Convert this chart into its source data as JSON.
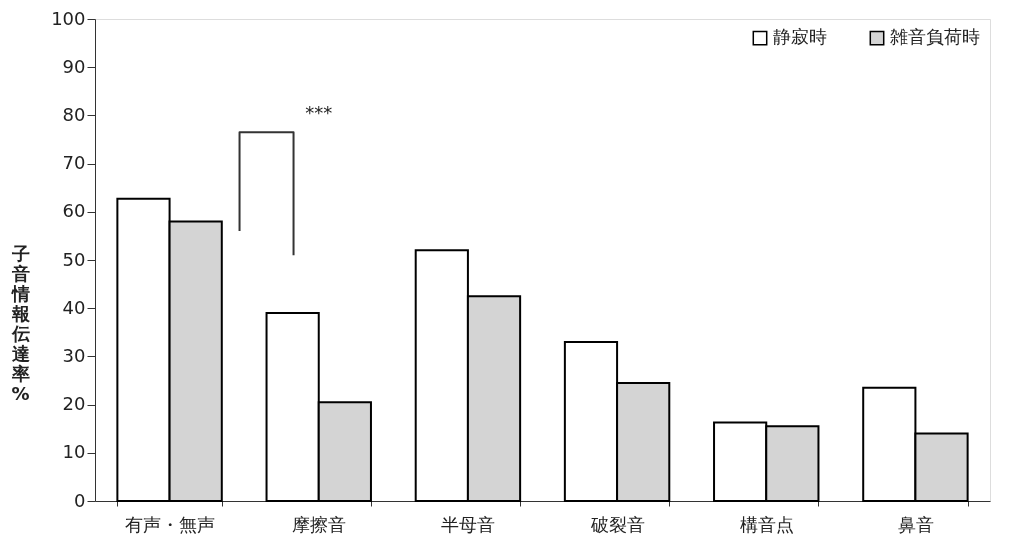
{
  "chart_data": {
    "type": "bar",
    "categories": [
      "有声・無声",
      "摩擦音",
      "半母音",
      "破裂音",
      "構音点",
      "鼻音"
    ],
    "ylabel": "子音情報伝達率%",
    "series": [
      {
        "name": "静寂時",
        "color": "#ffffff",
        "values": [
          62.7,
          39,
          52,
          33,
          16.3,
          23.5
        ]
      },
      {
        "name": "雑音負荷時",
        "color": "#d4d4d4",
        "values": [
          58,
          20.5,
          42.5,
          24.5,
          15.5,
          14
        ]
      }
    ],
    "ylim": [
      0,
      100
    ],
    "yticks": [
      0,
      10,
      20,
      30,
      40,
      50,
      60,
      70,
      80,
      90,
      100
    ],
    "annotations": [
      "***"
    ],
    "legend": "top right",
    "grid": false
  }
}
